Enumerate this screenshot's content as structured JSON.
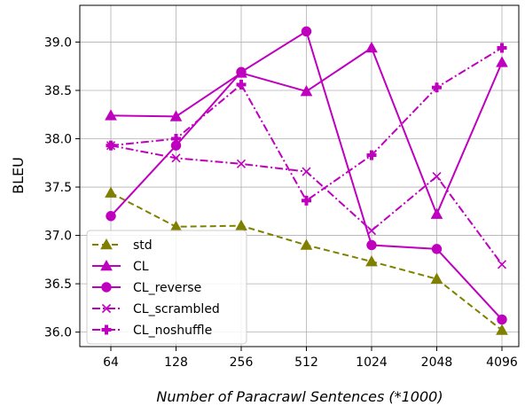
{
  "chart_data": {
    "type": "line",
    "xlabel": "Number of Paracrawl Sentences (*1000)",
    "ylabel": "BLEU",
    "categories": [
      "64",
      "128",
      "256",
      "512",
      "1024",
      "2048",
      "4096"
    ],
    "ylim": [
      35.85,
      39.38
    ],
    "yticks": [
      "36.0",
      "36.5",
      "37.0",
      "37.5",
      "38.0",
      "38.5",
      "39.0"
    ],
    "grid": true,
    "legend_position": "lower-left",
    "series": [
      {
        "name": "std",
        "color": "#808000",
        "linestyle": "dashed",
        "marker": "triangle",
        "values": [
          37.44,
          37.09,
          37.1,
          36.9,
          36.73,
          36.55,
          36.02
        ]
      },
      {
        "name": "CL",
        "color": "#bf00bf",
        "linestyle": "solid",
        "marker": "triangle",
        "values": [
          38.24,
          38.23,
          38.68,
          38.49,
          38.94,
          37.22,
          38.79
        ]
      },
      {
        "name": "CL_reverse",
        "color": "#bf00bf",
        "linestyle": "solid",
        "marker": "circle",
        "values": [
          37.2,
          37.93,
          38.69,
          39.11,
          36.9,
          36.86,
          36.13
        ]
      },
      {
        "name": "CL_scrambled",
        "color": "#bf00bf",
        "linestyle": "dashdot",
        "marker": "x",
        "values": [
          37.93,
          37.8,
          37.74,
          37.66,
          37.05,
          37.61,
          36.7
        ]
      },
      {
        "name": "CL_noshuffle",
        "color": "#bf00bf",
        "linestyle": "dashdot",
        "marker": "plus",
        "values": [
          37.93,
          38.0,
          38.56,
          37.36,
          37.83,
          38.53,
          38.94
        ]
      }
    ]
  }
}
